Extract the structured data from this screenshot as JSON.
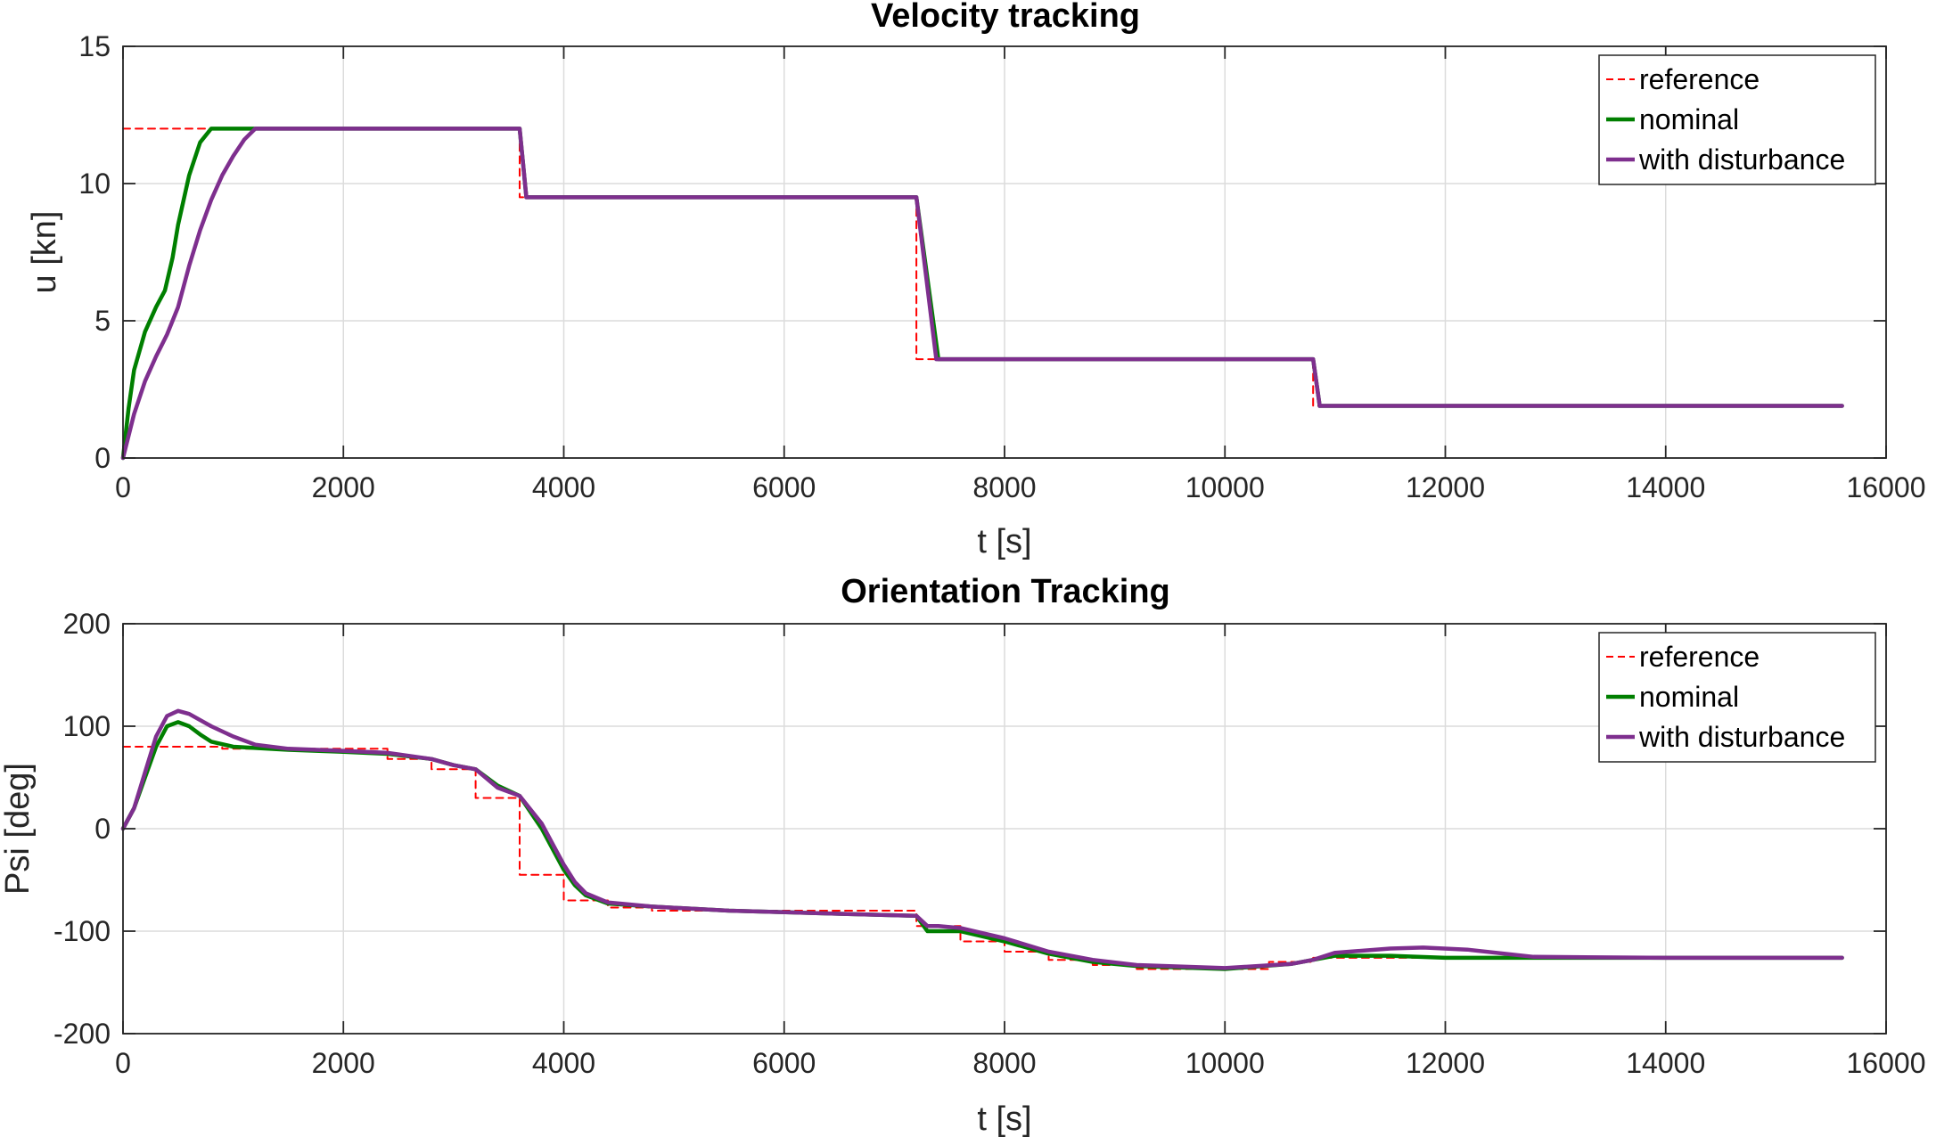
{
  "chart_data": [
    {
      "type": "line",
      "title": "Velocity tracking",
      "xlabel": "t [s]",
      "ylabel": "u [kn]",
      "xlim": [
        0,
        16000
      ],
      "ylim": [
        0,
        15
      ],
      "xticks": [
        0,
        2000,
        4000,
        6000,
        8000,
        10000,
        12000,
        14000,
        16000
      ],
      "yticks": [
        0,
        5,
        10,
        15
      ],
      "grid": true,
      "legend_position": "top-right",
      "series": [
        {
          "name": "reference",
          "color": "#ff0000",
          "style": "dashed",
          "x": [
            0,
            3600,
            3600,
            7200,
            7200,
            10800,
            10800,
            15600
          ],
          "y": [
            12,
            12,
            9.5,
            9.5,
            3.6,
            3.6,
            1.9,
            1.9
          ]
        },
        {
          "name": "nominal",
          "color": "#007f00",
          "style": "solid",
          "x": [
            0,
            50,
            100,
            200,
            300,
            380,
            450,
            500,
            600,
            700,
            800,
            3600,
            3660,
            7200,
            7400,
            10800,
            10860,
            15600
          ],
          "y": [
            0,
            1.8,
            3.2,
            4.6,
            5.5,
            6.1,
            7.3,
            8.5,
            10.3,
            11.5,
            12,
            12,
            9.5,
            9.5,
            3.6,
            3.6,
            1.9,
            1.9
          ]
        },
        {
          "name": "with disturbance",
          "color": "#7e2f8e",
          "style": "solid",
          "x": [
            0,
            100,
            200,
            300,
            400,
            500,
            600,
            700,
            800,
            900,
            1000,
            1100,
            1200,
            3600,
            3660,
            7200,
            7380,
            10800,
            10860,
            15600
          ],
          "y": [
            0,
            1.6,
            2.8,
            3.7,
            4.5,
            5.5,
            7.0,
            8.3,
            9.4,
            10.3,
            11.0,
            11.6,
            12,
            12,
            9.5,
            9.5,
            3.6,
            3.6,
            1.9,
            1.9
          ]
        }
      ]
    },
    {
      "type": "line",
      "title": "Orientation Tracking",
      "xlabel": "t [s]",
      "ylabel": "Psi [deg]",
      "xlim": [
        0,
        16000
      ],
      "ylim": [
        -200,
        200
      ],
      "xticks": [
        0,
        2000,
        4000,
        6000,
        8000,
        10000,
        12000,
        14000,
        16000
      ],
      "yticks": [
        -200,
        -100,
        0,
        100,
        200
      ],
      "grid": true,
      "legend_position": "top-right",
      "series": [
        {
          "name": "reference",
          "color": "#ff0000",
          "style": "dashed",
          "x": [
            0,
            900,
            900,
            2400,
            2400,
            2800,
            2800,
            3200,
            3200,
            3600,
            3600,
            4000,
            4000,
            4400,
            4400,
            4800,
            4800,
            7200,
            7200,
            7600,
            7600,
            8000,
            8000,
            8400,
            8400,
            8800,
            8800,
            9200,
            9200,
            10400,
            10400,
            10800,
            10800,
            15600
          ],
          "y": [
            80,
            80,
            78,
            78,
            68,
            68,
            58,
            58,
            30,
            30,
            -45,
            -45,
            -70,
            -70,
            -77,
            -77,
            -80,
            -80,
            -95,
            -95,
            -110,
            -110,
            -120,
            -120,
            -128,
            -128,
            -133,
            -133,
            -137,
            -137,
            -130,
            -130,
            -126,
            -126
          ]
        },
        {
          "name": "nominal",
          "color": "#007f00",
          "style": "solid",
          "x": [
            0,
            100,
            200,
            300,
            400,
            500,
            600,
            700,
            800,
            1000,
            1500,
            2000,
            2400,
            2800,
            3000,
            3200,
            3400,
            3600,
            3800,
            3900,
            4000,
            4100,
            4200,
            4400,
            4800,
            5500,
            6500,
            7200,
            7300,
            7400,
            7600,
            8000,
            8400,
            8800,
            9200,
            10000,
            10600,
            10800,
            11000,
            11500,
            12000,
            12500,
            13000,
            14000,
            15600
          ],
          "y": [
            0,
            20,
            50,
            80,
            100,
            104,
            100,
            92,
            85,
            80,
            77,
            75,
            73,
            68,
            62,
            58,
            42,
            32,
            0,
            -20,
            -40,
            -55,
            -65,
            -73,
            -76,
            -80,
            -83,
            -85,
            -100,
            -100,
            -100,
            -110,
            -122,
            -130,
            -134,
            -137,
            -132,
            -128,
            -124,
            -124,
            -126,
            -126,
            -126,
            -126,
            -126
          ]
        },
        {
          "name": "with disturbance",
          "color": "#7e2f8e",
          "style": "solid",
          "x": [
            0,
            100,
            200,
            300,
            400,
            500,
            600,
            700,
            800,
            1000,
            1200,
            1500,
            2000,
            2400,
            2800,
            3000,
            3200,
            3400,
            3600,
            3800,
            3900,
            4000,
            4100,
            4200,
            4400,
            4800,
            5500,
            6500,
            7200,
            7300,
            7400,
            7600,
            8000,
            8400,
            8800,
            9200,
            10000,
            10600,
            10800,
            11000,
            11500,
            11800,
            12200,
            12800,
            14000,
            15600
          ],
          "y": [
            0,
            20,
            55,
            90,
            110,
            115,
            112,
            106,
            100,
            90,
            82,
            78,
            76,
            74,
            68,
            62,
            58,
            40,
            32,
            5,
            -15,
            -35,
            -52,
            -63,
            -72,
            -76,
            -80,
            -83,
            -85,
            -95,
            -95,
            -97,
            -107,
            -120,
            -128,
            -133,
            -136,
            -132,
            -128,
            -121,
            -117,
            -116,
            -118,
            -125,
            -126,
            -126
          ]
        }
      ]
    }
  ]
}
